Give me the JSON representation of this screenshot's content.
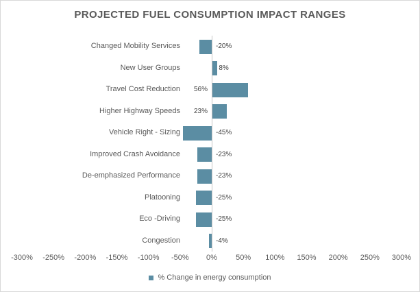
{
  "chart_data": {
    "type": "bar",
    "orientation": "horizontal",
    "title": "PROJECTED FUEL CONSUMPTION IMPACT RANGES",
    "categories": [
      "Changed Mobility Services",
      "New User Groups",
      "Travel Cost Reduction",
      "Higher Highway Speeds",
      "Vehicle Right - Sizing",
      "Improved Crash Avoidance",
      "De-emphasized Performance",
      "Platooning",
      "Eco -Driving",
      "Congestion"
    ],
    "values": [
      -20,
      8,
      56,
      23,
      -45,
      -23,
      -23,
      -25,
      -25,
      -4
    ],
    "data_labels": [
      "-20%",
      "8%",
      "56%",
      "23%",
      "-45%",
      "-23%",
      "-23%",
      "-25%",
      "-25%",
      "-4%"
    ],
    "label_positions": [
      "axis-right",
      "bar-end",
      "axis-left",
      "axis-left",
      "axis-right",
      "axis-right",
      "axis-right",
      "axis-right",
      "axis-right",
      "axis-right"
    ],
    "x_ticks": [
      "-300%",
      "-250%",
      "-200%",
      "-150%",
      "-100%",
      "-50%",
      "0%",
      "50%",
      "100%",
      "150%",
      "200%",
      "250%",
      "300%"
    ],
    "xlim": [
      -300,
      300
    ],
    "gridlines": false,
    "legend": {
      "label": "% Change in energy consumption",
      "position": "bottom"
    },
    "series_name": "% Change in energy consumption",
    "colors": {
      "bar": "#5B8DA3",
      "title": "#595959",
      "axis_line": "#C3C3C3",
      "tick_text": "#595959",
      "value_text": "#404040"
    }
  }
}
